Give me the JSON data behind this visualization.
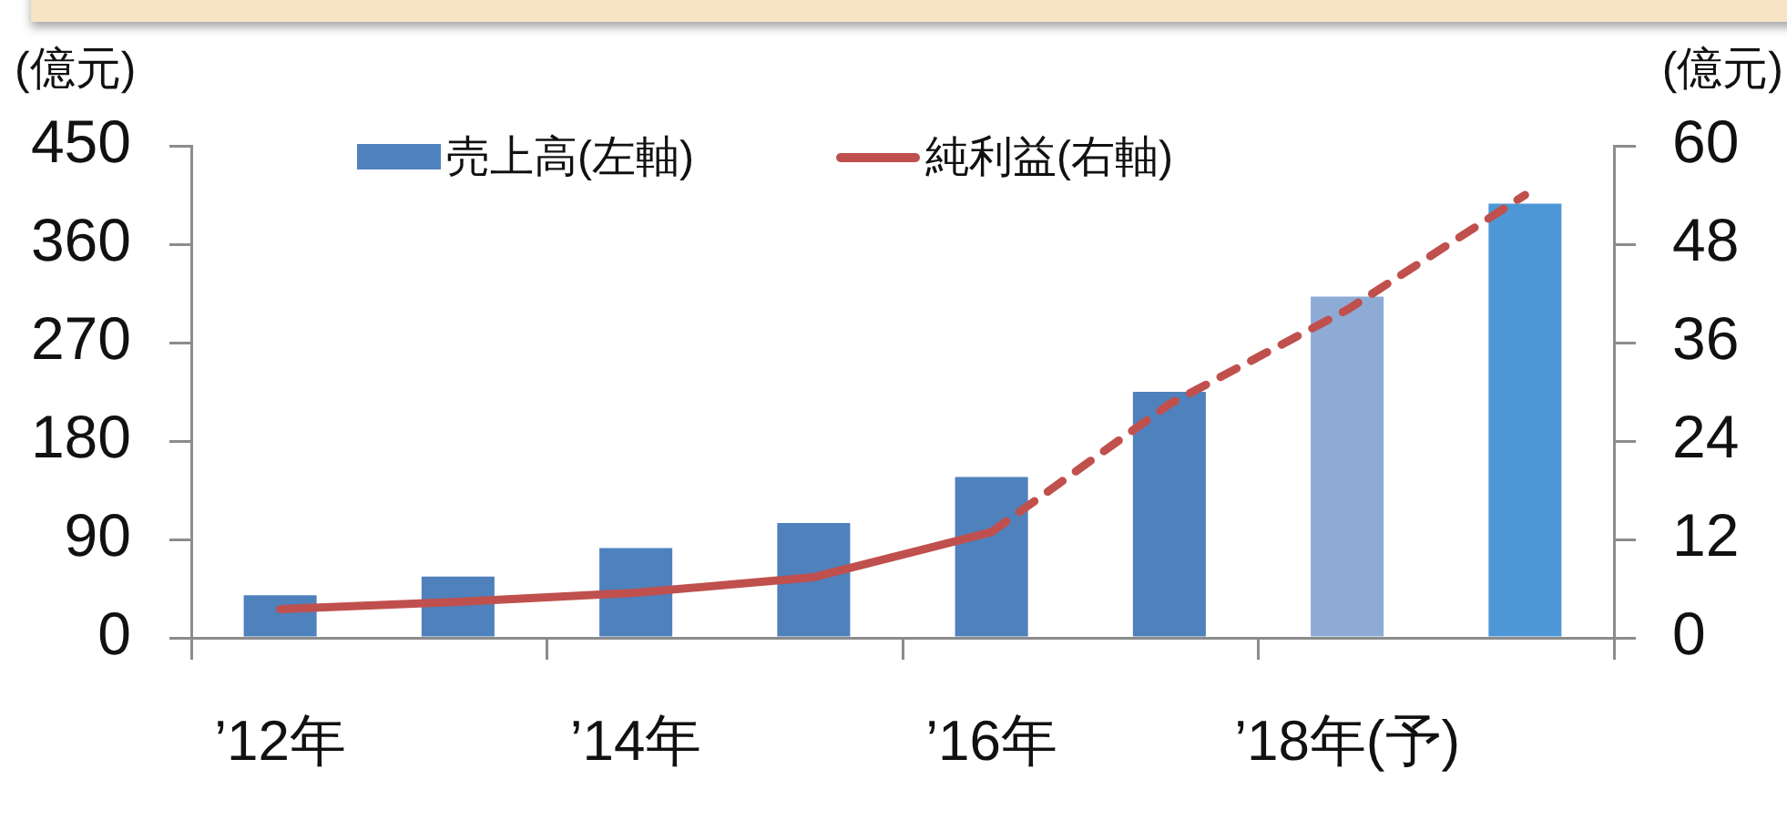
{
  "chart_data": {
    "type": "bar",
    "ylabel": "(億元)",
    "y2label": "(億元)",
    "categories": [
      "’12年",
      null,
      "’14年",
      null,
      "’16年",
      null,
      "’18年(予)",
      null
    ],
    "ylim": [
      0,
      450
    ],
    "yticks": [
      0,
      90,
      180,
      270,
      360,
      450
    ],
    "y2lim": [
      0,
      60
    ],
    "y2ticks": [
      0,
      12,
      24,
      36,
      48,
      60
    ],
    "series": [
      {
        "name": "売上高(左軸)",
        "color": "#4f81bd",
        "colors": [
          "#4f81bd",
          "#4f81bd",
          "#4f81bd",
          "#4f81bd",
          "#4f81bd",
          "#4f81bd",
          "#8eabd6",
          "#4d97d6"
        ],
        "values": [
          39,
          56,
          82,
          105,
          147,
          225,
          312,
          397
        ]
      },
      {
        "name": "純利益(右軸)",
        "type": "line",
        "axis": "y2",
        "color": "#c0504d",
        "line_style": "solid",
        "values": [
          3.5,
          4.4,
          5.5,
          7.4,
          12.9,
          null,
          null,
          null
        ]
      },
      {
        "type": "line",
        "axis": "y2",
        "color": "#c0504d",
        "line_style": "dashed",
        "values": [
          null,
          null,
          null,
          null,
          12.9,
          28.5,
          40,
          54
        ]
      }
    ],
    "legend": "top",
    "marker": "none"
  }
}
